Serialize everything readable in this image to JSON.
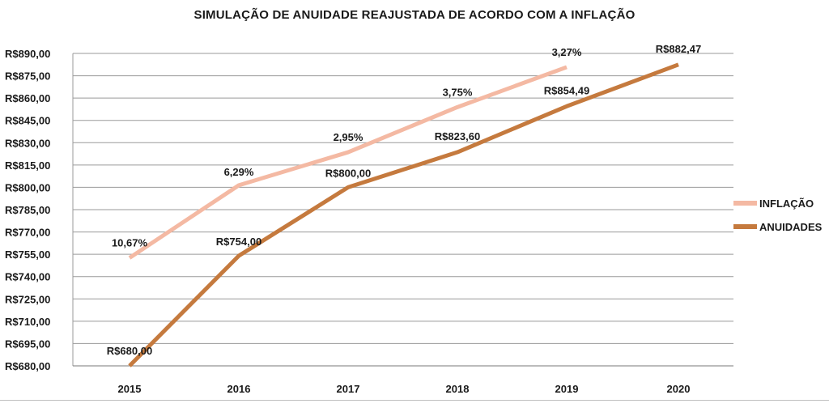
{
  "chart_data": {
    "type": "line",
    "title": "SIMULAÇÃO DE ANUIDADE REAJUSTADA DE ACORDO COM A INFLAÇÃO",
    "categories": [
      "2015",
      "2016",
      "2017",
      "2018",
      "2019",
      "2020"
    ],
    "y_ticks": [
      "R$680,00",
      "R$695,00",
      "R$710,00",
      "R$725,00",
      "R$740,00",
      "R$755,00",
      "R$770,00",
      "R$785,00",
      "R$800,00",
      "R$815,00",
      "R$830,00",
      "R$845,00",
      "R$860,00",
      "R$875,00",
      "R$890,00"
    ],
    "ylim": [
      680,
      890
    ],
    "grid": true,
    "legend_position": "right",
    "series": [
      {
        "name": "INFLAÇÃO",
        "color": "#f4b9a3",
        "values": [
          752.6,
          801.4,
          823.6,
          853.9,
          880.8,
          null
        ],
        "labels": [
          "10,67%",
          "6,29%",
          "2,95%",
          "3,75%",
          "3,27%",
          null
        ]
      },
      {
        "name": "ANUIDADES",
        "color": "#c57a3e",
        "values": [
          680.0,
          754.0,
          800.0,
          823.6,
          854.49,
          882.47
        ],
        "labels": [
          "R$680,00",
          "R$754,00",
          "R$800,00",
          "R$823,60",
          "R$854,49",
          "R$882,47"
        ]
      }
    ]
  }
}
